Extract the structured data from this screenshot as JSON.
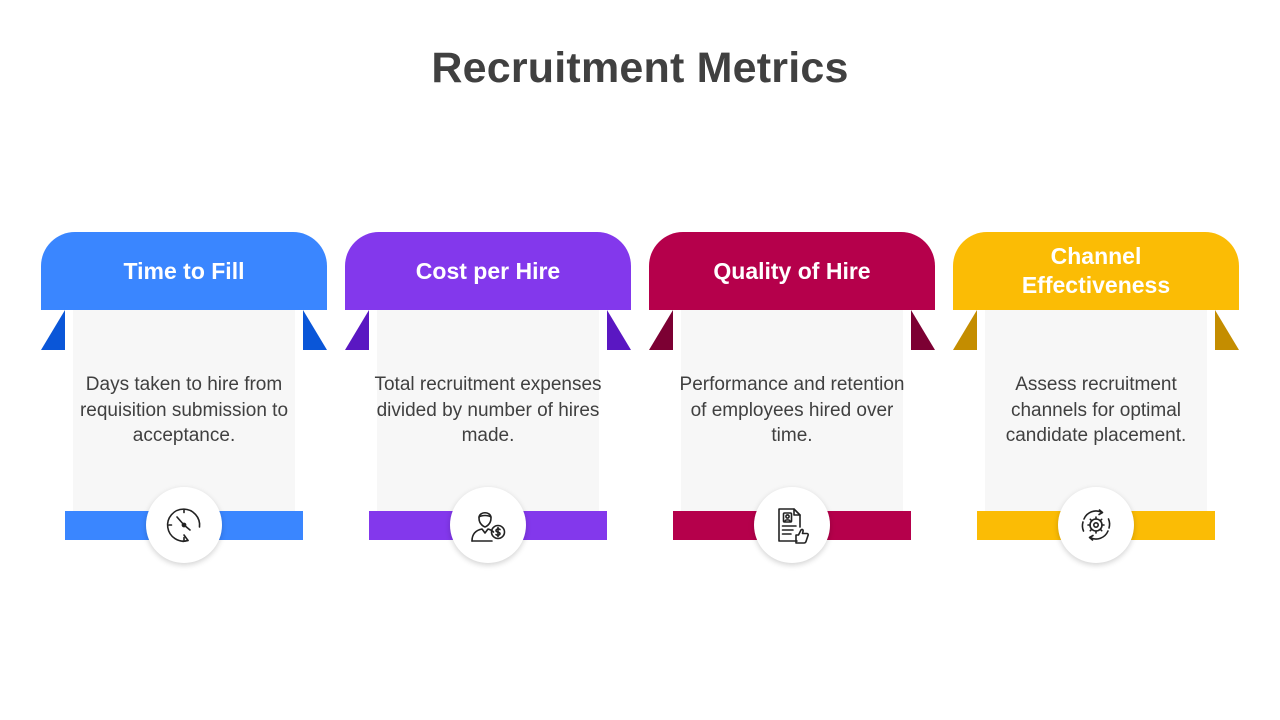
{
  "title": "Recruitment Metrics",
  "cards": [
    {
      "heading": "Time to Fill",
      "description": "Days taken to hire from requisition submission to acceptance.",
      "icon": "clock-icon",
      "color": "#3a86ff",
      "fold_color": "#0a56d8"
    },
    {
      "heading": "Cost per Hire",
      "description": "Total recruitment expenses divided by number of hires made.",
      "icon": "person-dollar-icon",
      "color": "#8338ec",
      "fold_color": "#5a17c2"
    },
    {
      "heading": "Quality of Hire",
      "description": "Performance and retention of employees hired over time.",
      "icon": "resume-thumbs-up-icon",
      "color": "#b5004b",
      "fold_color": "#7c0033"
    },
    {
      "heading": "Channel Effectiveness",
      "description": "Assess recruitment channels for optimal candidate placement.",
      "icon": "gear-cycle-icon",
      "color": "#fbbc05",
      "fold_color": "#c48d00"
    }
  ]
}
